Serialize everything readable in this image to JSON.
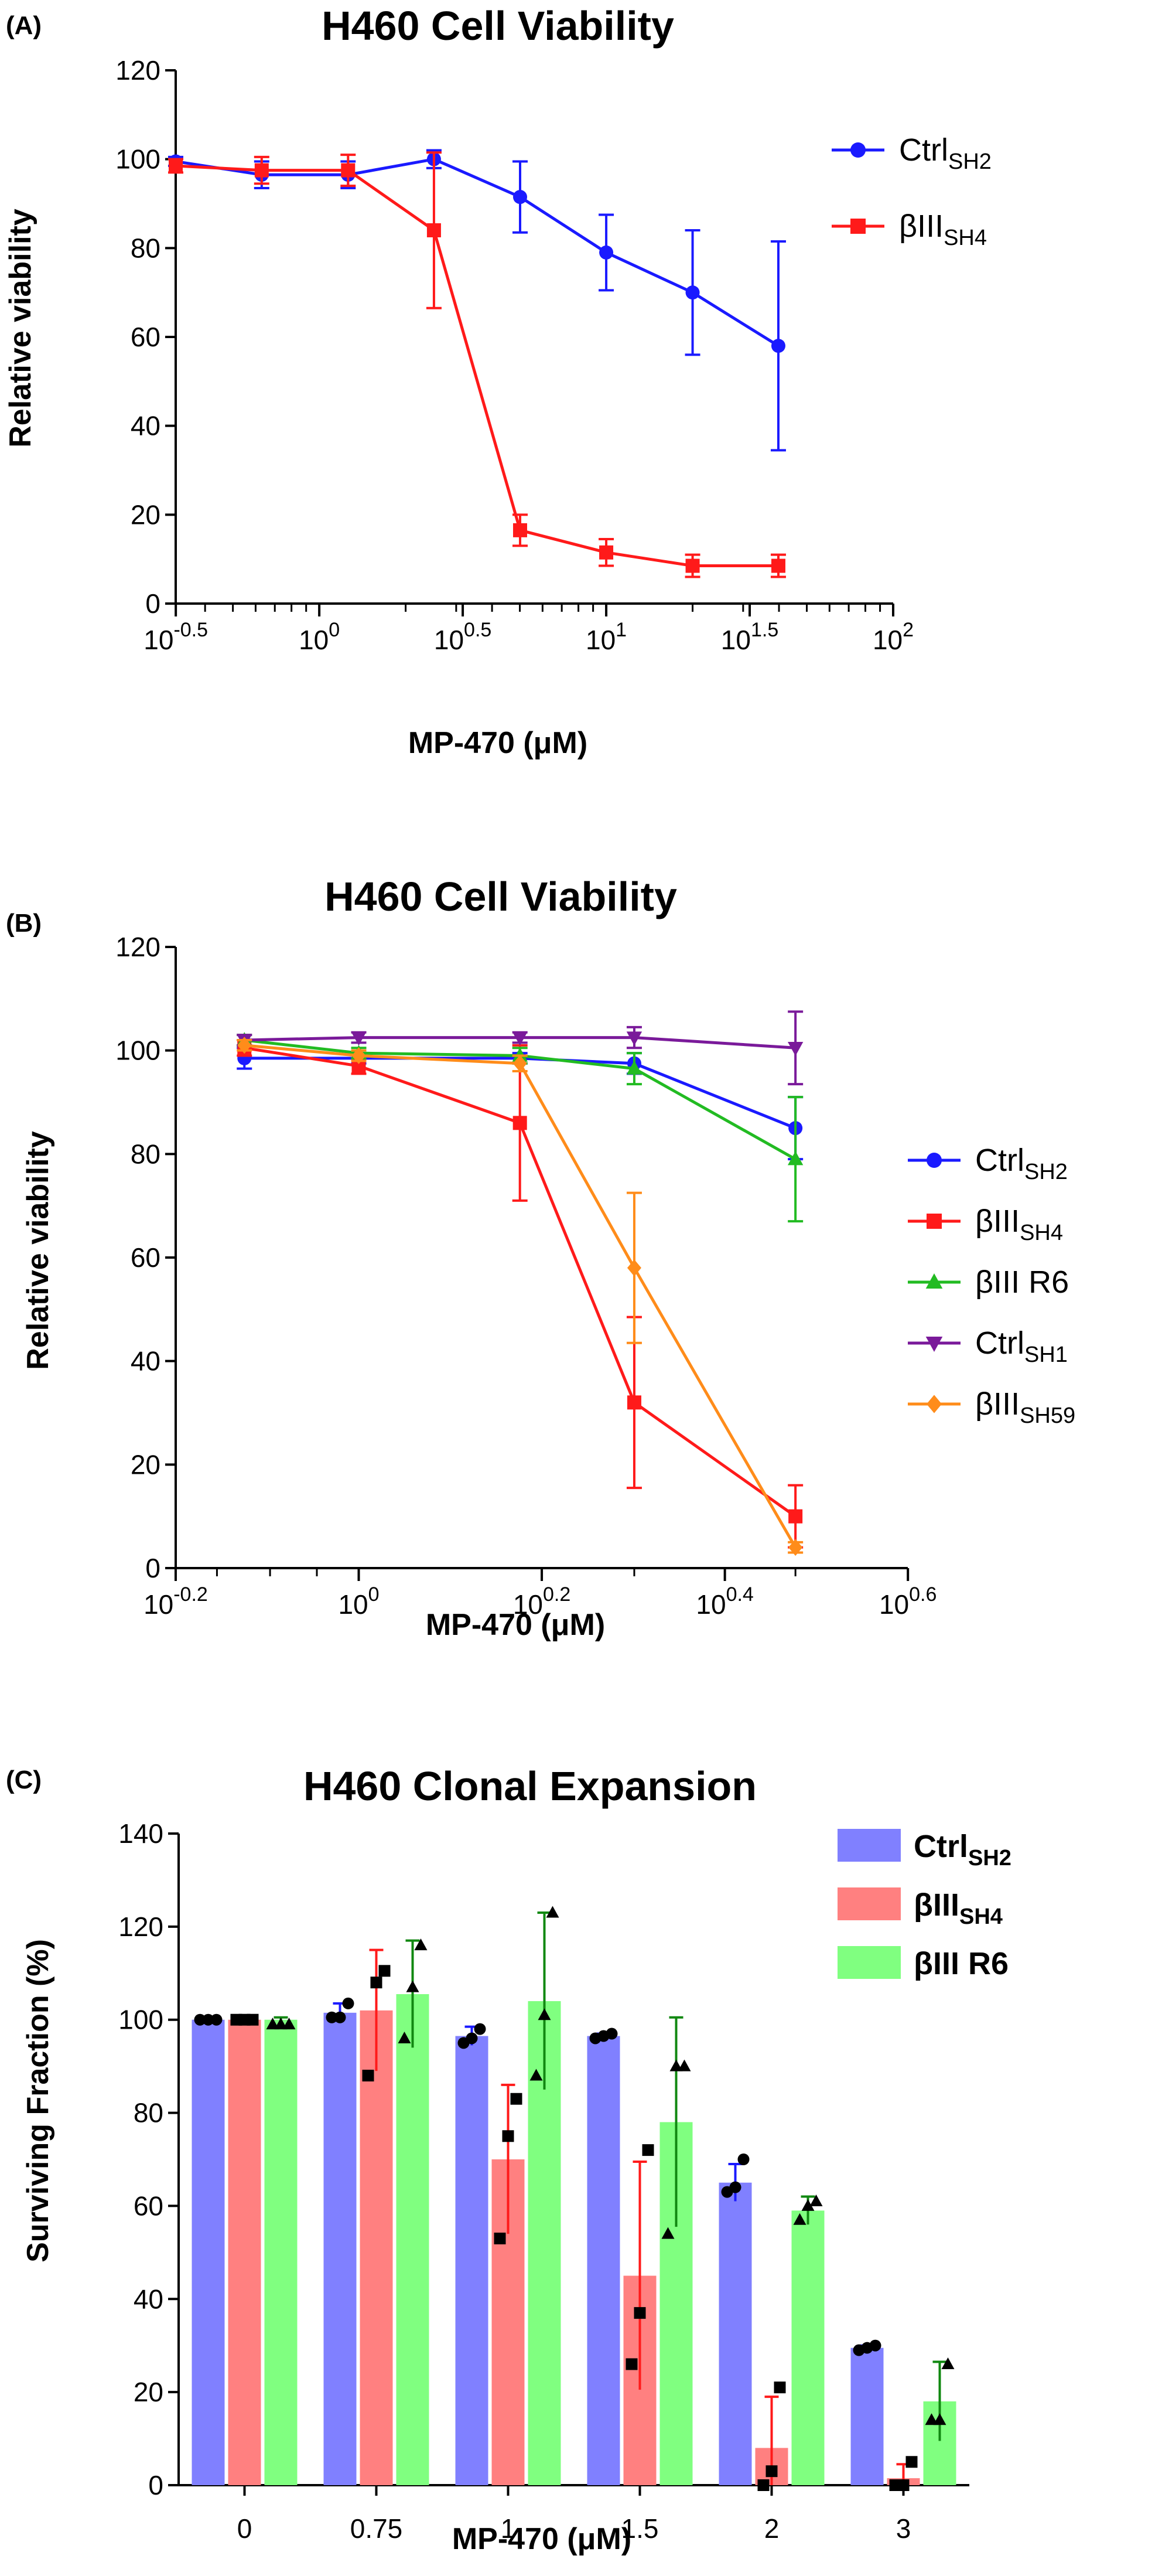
{
  "panels": {
    "a": {
      "label": "(A)"
    },
    "b": {
      "label": "(B)"
    },
    "c": {
      "label": "(C)"
    }
  },
  "chart_data": [
    {
      "type": "line",
      "panel": "(A)",
      "title": "H460 Cell Viability",
      "xlabel": "MP-470 (μM)",
      "ylabel": "Relative viability",
      "xscale": "log10",
      "xlim": [
        0.316,
        100
      ],
      "ylim": [
        0,
        120
      ],
      "xticks": [
        {
          "base": "10",
          "exp": "-0.5"
        },
        {
          "base": "10",
          "exp": "0"
        },
        {
          "base": "10",
          "exp": "0.5"
        },
        {
          "base": "10",
          "exp": "1"
        },
        {
          "base": "10",
          "exp": "1.5"
        },
        {
          "base": "10",
          "exp": "2"
        }
      ],
      "yticks": [
        "0",
        "20",
        "40",
        "60",
        "80",
        "100",
        "120"
      ],
      "legend_position": "top-right",
      "x": [
        0.316,
        0.63,
        1.26,
        2.51,
        5.01,
        10,
        20,
        39.8
      ],
      "series": [
        {
          "name": "Ctrl",
          "sub": "SH2",
          "color": "#1a1aff",
          "marker": "circle",
          "values": [
            99.5,
            96.5,
            96.5,
            100,
            91.5,
            79,
            70,
            58
          ],
          "errors": [
            1,
            3,
            3,
            2,
            8,
            8.5,
            14,
            23.5
          ]
        },
        {
          "name": "βIII",
          "sub": "SH4",
          "color": "#ff1a1a",
          "marker": "square",
          "values": [
            98.5,
            97.5,
            97.5,
            84,
            16.5,
            11.5,
            8.5,
            8.5
          ],
          "errors": [
            1.5,
            3,
            3.5,
            17.5,
            3.5,
            3,
            2.5,
            2.5
          ]
        }
      ]
    },
    {
      "type": "line",
      "panel": "(B)",
      "title": "H460 Cell Viability",
      "xlabel": "MP-470 (μM)",
      "ylabel": "Relative viability",
      "xscale": "log10",
      "xlim": [
        0.631,
        3.98
      ],
      "ylim": [
        0,
        120
      ],
      "xticks": [
        {
          "base": "10",
          "exp": "-0.2"
        },
        {
          "base": "10",
          "exp": "0"
        },
        {
          "base": "10",
          "exp": "0.2"
        },
        {
          "base": "10",
          "exp": "0.4"
        },
        {
          "base": "10",
          "exp": "0.6"
        }
      ],
      "yticks": [
        "0",
        "20",
        "40",
        "60",
        "80",
        "100",
        "120"
      ],
      "legend_position": "right",
      "x": [
        0.75,
        1,
        1.5,
        2,
        3
      ],
      "series": [
        {
          "name": "Ctrl",
          "sub": "SH2",
          "color": "#1a1aff",
          "marker": "circle",
          "values": [
            98.5,
            98.5,
            98.5,
            97.5,
            85
          ],
          "errors": [
            2,
            1,
            1,
            2,
            6
          ]
        },
        {
          "name": "βIII",
          "sub": "SH4",
          "color": "#ff1a1a",
          "marker": "square",
          "values": [
            100.5,
            97,
            86,
            32,
            10
          ],
          "errors": [
            1.5,
            1.5,
            15,
            16.5,
            6
          ]
        },
        {
          "name": "βIII R6",
          "sub": "",
          "color": "#22bb22",
          "marker": "triangle-up",
          "values": [
            102,
            99.5,
            99,
            96.5,
            79
          ],
          "errors": [
            1,
            1,
            1.5,
            3,
            12
          ]
        },
        {
          "name": "Ctrl",
          "sub": "SH1",
          "color": "#7a1a9a",
          "marker": "triangle-down",
          "values": [
            102,
            102.5,
            102.5,
            102.5,
            100.5
          ],
          "errors": [
            1,
            1,
            1,
            2,
            7
          ]
        },
        {
          "name": "βIII",
          "sub": "SH59",
          "color": "#ff8c1a",
          "marker": "diamond",
          "values": [
            101,
            99,
            97.5,
            58,
            4
          ],
          "errors": [
            1,
            1,
            1.5,
            14.5,
            1
          ]
        }
      ]
    },
    {
      "type": "bar",
      "panel": "(C)",
      "title": "H460 Clonal Expansion",
      "xlabel": "MP-470 (μM)",
      "ylabel": "Surviving Fraction (%)",
      "ylim": [
        0,
        140
      ],
      "categories": [
        "0",
        "0.75",
        "1",
        "1.5",
        "2",
        "3"
      ],
      "yticks": [
        "0",
        "20",
        "40",
        "60",
        "80",
        "100",
        "120",
        "140"
      ],
      "legend_position": "top-right",
      "series": [
        {
          "name": "Ctrl",
          "sub": "SH2",
          "color": "#8080ff",
          "err_color": "#1a1aff",
          "marker": "circle",
          "values": [
            100,
            101.5,
            96.5,
            96.5,
            65,
            29.5
          ],
          "errors": [
            0.5,
            2,
            2,
            0.5,
            4,
            0.5
          ],
          "points": [
            [
              100,
              100,
              100
            ],
            [
              100.5,
              100.5,
              103.5
            ],
            [
              95,
              96,
              98
            ],
            [
              96,
              96.5,
              97
            ],
            [
              63,
              64,
              70
            ],
            [
              29,
              29.5,
              30
            ]
          ]
        },
        {
          "name": "βIII",
          "sub": "SH4",
          "color": "#ff8080",
          "err_color": "#ff1a1a",
          "marker": "square",
          "values": [
            100,
            102,
            70,
            45,
            8,
            1.5
          ],
          "errors": [
            0.5,
            13,
            16,
            24.5,
            11,
            3
          ],
          "points": [
            [
              100,
              100,
              100
            ],
            [
              88,
              108,
              110.5
            ],
            [
              53,
              75,
              83
            ],
            [
              26,
              37,
              72
            ],
            [
              0,
              3,
              21
            ],
            [
              0,
              0,
              5
            ]
          ]
        },
        {
          "name": "βIII R6",
          "sub": "",
          "color": "#80ff80",
          "err_color": "#118811",
          "marker": "triangle-up",
          "values": [
            100,
            105.5,
            104,
            78,
            59,
            18
          ],
          "errors": [
            0.5,
            11.5,
            19,
            22.5,
            3,
            8.5
          ],
          "points": [
            [
              99,
              99,
              99
            ],
            [
              96,
              107,
              116
            ],
            [
              88,
              101,
              123
            ],
            [
              54,
              90,
              90
            ],
            [
              57,
              60,
              61
            ],
            [
              14,
              14,
              26
            ]
          ]
        }
      ]
    }
  ]
}
